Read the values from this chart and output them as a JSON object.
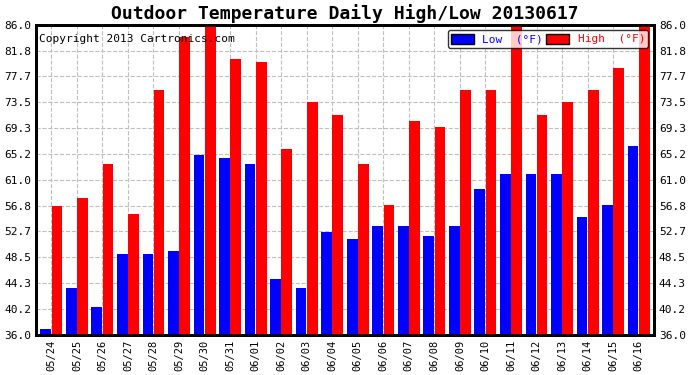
{
  "title": "Outdoor Temperature Daily High/Low 20130617",
  "copyright": "Copyright 2013 Cartronics.com",
  "legend_low": "Low  (°F)",
  "legend_high": "High  (°F)",
  "dates": [
    "05/24",
    "05/25",
    "05/26",
    "05/27",
    "05/28",
    "05/29",
    "05/30",
    "05/31",
    "06/01",
    "06/02",
    "06/03",
    "06/04",
    "06/05",
    "06/06",
    "06/07",
    "06/08",
    "06/09",
    "06/10",
    "06/11",
    "06/12",
    "06/13",
    "06/14",
    "06/15",
    "06/16"
  ],
  "high": [
    56.8,
    58.0,
    63.5,
    55.5,
    75.5,
    84.0,
    86.0,
    80.5,
    80.0,
    66.0,
    73.5,
    71.5,
    63.5,
    57.0,
    70.5,
    69.5,
    75.5,
    75.5,
    86.0,
    71.5,
    73.5,
    75.5,
    79.0,
    86.0
  ],
  "low": [
    37.0,
    43.5,
    40.5,
    49.0,
    49.0,
    49.5,
    65.0,
    64.5,
    63.5,
    45.0,
    43.5,
    52.5,
    51.5,
    53.5,
    53.5,
    52.0,
    53.5,
    59.5,
    62.0,
    62.0,
    62.0,
    55.0,
    57.0,
    66.5
  ],
  "ylim": [
    36.0,
    86.0
  ],
  "yticks": [
    36.0,
    40.2,
    44.3,
    48.5,
    52.7,
    56.8,
    61.0,
    65.2,
    69.3,
    73.5,
    77.7,
    81.8,
    86.0
  ],
  "bg_color": "#ffffff",
  "plot_bg_color": "#ffffff",
  "bar_color_low": "#0000ff",
  "bar_color_high": "#ff0000",
  "grid_color": "#c0c0c0",
  "title_fontsize": 13,
  "copyright_fontsize": 8,
  "bar_width": 0.42,
  "bar_gap": 0.02
}
